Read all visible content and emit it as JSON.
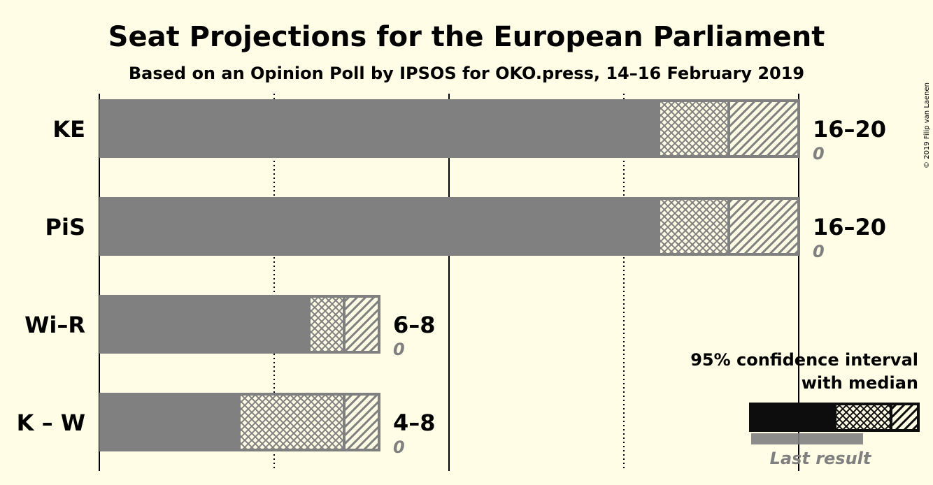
{
  "chart_data": {
    "type": "bar",
    "orientation": "horizontal",
    "title": "Seat Projections for the European Parliament",
    "subtitle": "Based on an Opinion Poll by IPSOS for OKO.press, 14–16 February 2019",
    "xlim": [
      0,
      20
    ],
    "categories": [
      "KE",
      "PiS",
      "Wi–R",
      "K – W"
    ],
    "bars": [
      {
        "party": "KE",
        "low": 16,
        "median": 18,
        "high": 20,
        "range_label": "16–20",
        "last_result": "0"
      },
      {
        "party": "PiS",
        "low": 16,
        "median": 18,
        "high": 20,
        "range_label": "16–20",
        "last_result": "0"
      },
      {
        "party": "Wi–R",
        "low": 6,
        "median": 7,
        "high": 8,
        "range_label": "6–8",
        "last_result": "0"
      },
      {
        "party": "K – W",
        "low": 4,
        "median": 7,
        "high": 8,
        "range_label": "4–8",
        "last_result": "0"
      }
    ],
    "gridlines": {
      "solid": [
        0,
        10,
        20
      ],
      "dotted": [
        5,
        15
      ]
    },
    "legend": {
      "line1": "95% confidence interval",
      "line2": "with median",
      "last_result_label": "Last result",
      "placement": "bottom-right"
    },
    "colors": {
      "bar": "#808080",
      "legend_bar": "#0D0D0D",
      "background": "#FFFDE6"
    }
  },
  "copyright": "© 2019 Filip van Laenen"
}
